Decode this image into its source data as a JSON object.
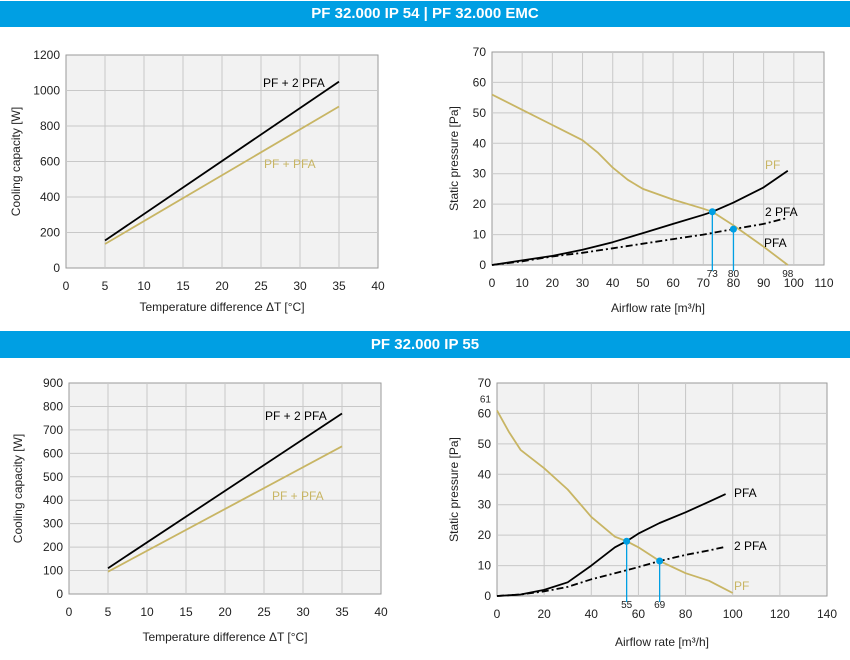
{
  "sections": [
    {
      "title": "PF 32.000 IP 54 | PF 32.000 EMC"
    },
    {
      "title": "PF 32.000 IP 55"
    }
  ],
  "colors": {
    "banner": "#009fe3",
    "pf_line": "#c8b564",
    "pfa_line": "#000000",
    "marker": "#009fe3",
    "grid": "#c8c8c8",
    "plot_bg": "#f2f2f2"
  },
  "chart_data": [
    {
      "type": "line",
      "xlabel": "Temperature difference ΔT [°C]",
      "ylabel": "Cooling capacity [W]",
      "xlim": [
        0,
        40
      ],
      "ylim": [
        0,
        1200
      ],
      "xticks": [
        0,
        5,
        10,
        15,
        20,
        25,
        30,
        35,
        40
      ],
      "yticks": [
        0,
        200,
        400,
        600,
        800,
        1000,
        1200
      ],
      "grid": true,
      "series": [
        {
          "name": "PF + 2 PFA",
          "color": "#000000",
          "style": "solid",
          "x": [
            5,
            35
          ],
          "y": [
            155,
            1050
          ]
        },
        {
          "name": "PF + PFA",
          "color": "#c8b564",
          "style": "solid",
          "x": [
            5,
            35
          ],
          "y": [
            135,
            910
          ]
        }
      ]
    },
    {
      "type": "line",
      "xlabel": "Airflow rate [m³/h]",
      "ylabel": "Static pressure [Pa]",
      "xlim": [
        0,
        110
      ],
      "ylim": [
        0,
        70
      ],
      "xticks": [
        0,
        10,
        20,
        30,
        40,
        50,
        60,
        70,
        80,
        90,
        100,
        110
      ],
      "yticks": [
        0,
        10,
        20,
        30,
        40,
        50,
        60,
        70
      ],
      "grid": true,
      "series": [
        {
          "name": "PF",
          "color": "#c8b564",
          "style": "solid",
          "x": [
            0,
            10,
            20,
            30,
            35,
            40,
            45,
            50,
            60,
            70,
            73,
            80,
            90,
            98
          ],
          "y": [
            56,
            51,
            46,
            41,
            37,
            32,
            28,
            25,
            21.5,
            18.5,
            17.5,
            13,
            6,
            0
          ]
        },
        {
          "name": "PFA",
          "color": "#000000",
          "style": "solid",
          "x": [
            0,
            10,
            20,
            30,
            40,
            50,
            60,
            70,
            73,
            80,
            90,
            98
          ],
          "y": [
            0,
            1.5,
            3,
            5,
            7.5,
            10.5,
            13.5,
            16.5,
            17.5,
            20.5,
            25.5,
            31
          ]
        },
        {
          "name": "2 PFA",
          "color": "#000000",
          "style": "dashdot",
          "x": [
            0,
            10,
            20,
            30,
            40,
            50,
            60,
            70,
            80,
            90,
            98
          ],
          "y": [
            0,
            1.2,
            2.8,
            4,
            5.5,
            7,
            8.5,
            10,
            11.8,
            13.5,
            15.5
          ]
        }
      ],
      "operating_points": [
        {
          "x": 73,
          "y": 17.5,
          "label": "73"
        },
        {
          "x": 80,
          "y": 11.8,
          "label": "80"
        }
      ],
      "end_label": {
        "x": 98,
        "label": "98"
      }
    },
    {
      "type": "line",
      "xlabel": "Temperature difference ΔT [°C]",
      "ylabel": "Cooling capacity [W]",
      "xlim": [
        0,
        40
      ],
      "ylim": [
        0,
        900
      ],
      "xticks": [
        0,
        5,
        10,
        15,
        20,
        25,
        30,
        35,
        40
      ],
      "yticks": [
        0,
        100,
        200,
        300,
        400,
        500,
        600,
        700,
        800,
        900
      ],
      "grid": true,
      "series": [
        {
          "name": "PF + 2 PFA",
          "color": "#000000",
          "style": "solid",
          "x": [
            5,
            35
          ],
          "y": [
            110,
            770
          ]
        },
        {
          "name": "PF + PFA",
          "color": "#c8b564",
          "style": "solid",
          "x": [
            5,
            35
          ],
          "y": [
            95,
            630
          ]
        }
      ]
    },
    {
      "type": "line",
      "xlabel": "Airflow rate [m³/h]",
      "ylabel": "Static pressure [Pa]",
      "xlim": [
        0,
        140
      ],
      "ylim": [
        0,
        70
      ],
      "xticks": [
        0,
        20,
        40,
        60,
        80,
        100,
        120,
        140
      ],
      "yticks": [
        0,
        10,
        20,
        30,
        40,
        50,
        60,
        70
      ],
      "extra_ytick": {
        "y": 61,
        "label": "61"
      },
      "grid": true,
      "series": [
        {
          "name": "PF",
          "color": "#c8b564",
          "style": "solid",
          "x": [
            0,
            5,
            10,
            20,
            30,
            40,
            50,
            55,
            60,
            69,
            80,
            90,
            95,
            100
          ],
          "y": [
            61,
            54,
            48,
            42,
            35,
            26,
            19.5,
            18,
            16,
            11.5,
            7.5,
            5,
            3,
            1
          ]
        },
        {
          "name": "PFA",
          "color": "#000000",
          "style": "solid",
          "x": [
            0,
            10,
            20,
            30,
            40,
            50,
            55,
            60,
            69,
            80,
            90,
            97
          ],
          "y": [
            0,
            0.5,
            2,
            4.5,
            10,
            16,
            18,
            20.5,
            24,
            27.5,
            31,
            33.5
          ]
        },
        {
          "name": "2 PFA",
          "color": "#000000",
          "style": "dashdot",
          "x": [
            0,
            10,
            20,
            30,
            40,
            50,
            60,
            69,
            80,
            90,
            96
          ],
          "y": [
            0,
            0.5,
            1.5,
            3,
            5.5,
            7.5,
            9.5,
            11.5,
            13.5,
            15,
            16
          ]
        }
      ],
      "operating_points": [
        {
          "x": 55,
          "y": 18,
          "label": "55"
        },
        {
          "x": 69,
          "y": 11.5,
          "label": "69"
        }
      ]
    }
  ]
}
